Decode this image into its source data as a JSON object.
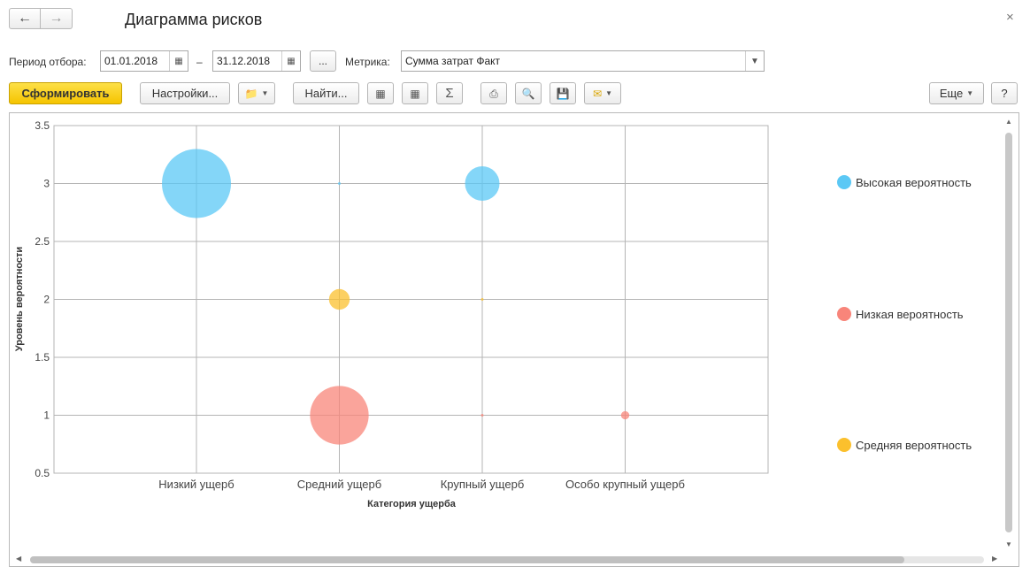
{
  "window": {
    "title": "Диаграмма рисков",
    "back_icon": "arrow-left-icon",
    "forward_icon": "arrow-right-icon",
    "close_glyph": "×"
  },
  "filters": {
    "period_label": "Период отбора:",
    "date_from": "01.01.2018",
    "dash": "–",
    "date_to": "31.12.2018",
    "more_button": "...",
    "metric_label": "Метрика:",
    "metric_value": "Сумма затрат Факт"
  },
  "toolbar": {
    "generate": "Сформировать",
    "settings": "Настройки...",
    "find": "Найти...",
    "more": "Еще",
    "help": "?"
  },
  "colors": {
    "high": "#5bc8f5",
    "low": "#f8857a",
    "medium": "#fbc02d",
    "grid": "#b4b4b4"
  },
  "chart_data": {
    "type": "scatter",
    "subtype": "bubble",
    "xlabel": "Категория ущерба",
    "ylabel": "Уровень вероятности",
    "categories": [
      "Низкий ущерб",
      "Средний ущерб",
      "Крупный ущерб",
      "Особо крупный ущерб"
    ],
    "ylim": [
      0.5,
      3.5
    ],
    "yticks": [
      "3.5",
      "3",
      "2.5",
      "2",
      "1.5",
      "1",
      "0.5"
    ],
    "grid": true,
    "legend_position": "right",
    "series": [
      {
        "name": "Высокая вероятность",
        "color": "#5bc8f5",
        "points": [
          {
            "category": "Низкий ущерб",
            "y": 3,
            "size": 1.0
          },
          {
            "category": "Средний ущерб",
            "y": 3,
            "size": 0.0
          },
          {
            "category": "Крупный ущерб",
            "y": 3,
            "size": 0.5
          }
        ]
      },
      {
        "name": "Низкая вероятность",
        "color": "#f8857a",
        "points": [
          {
            "category": "Средний ущерб",
            "y": 1,
            "size": 0.85
          },
          {
            "category": "Крупный ущерб",
            "y": 1,
            "size": 0.0
          },
          {
            "category": "Особо крупный ущерб",
            "y": 1,
            "size": 0.12
          }
        ]
      },
      {
        "name": "Средняя вероятность",
        "color": "#fbc02d",
        "points": [
          {
            "category": "Средний ущерб",
            "y": 2,
            "size": 0.3
          },
          {
            "category": "Крупный ущерб",
            "y": 2,
            "size": 0.0
          }
        ]
      }
    ]
  }
}
